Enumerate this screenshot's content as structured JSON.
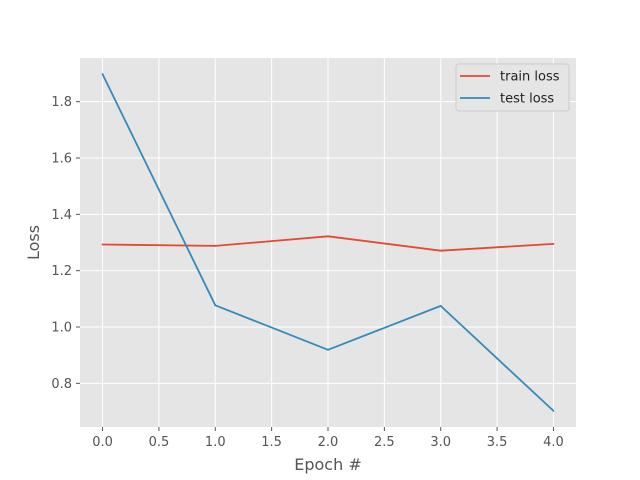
{
  "chart_data": {
    "type": "line",
    "title": "",
    "xlabel": "Epoch #",
    "ylabel": "Loss",
    "x": [
      0,
      1,
      2,
      3,
      4
    ],
    "xlim": [
      -0.2,
      4.2
    ],
    "ylim": [
      0.645,
      1.955
    ],
    "xticks": [
      0.0,
      0.5,
      1.0,
      1.5,
      2.0,
      2.5,
      3.0,
      3.5,
      4.0
    ],
    "xtick_labels": [
      "0.0",
      "0.5",
      "1.0",
      "1.5",
      "2.0",
      "2.5",
      "3.0",
      "3.5",
      "4.0"
    ],
    "yticks": [
      0.8,
      1.0,
      1.2,
      1.4,
      1.6,
      1.8
    ],
    "ytick_labels": [
      "0.8",
      "1.0",
      "1.2",
      "1.4",
      "1.6",
      "1.8"
    ],
    "grid": true,
    "legend_position": "top-right",
    "style": "ggplot",
    "colors": {
      "plot_bg": "#e5e5e5",
      "grid": "#ffffff"
    },
    "series": [
      {
        "name": "train loss",
        "color": "#e24a33",
        "values": [
          1.293,
          1.288,
          1.322,
          1.271,
          1.295
        ]
      },
      {
        "name": "test loss",
        "color": "#348abd",
        "values": [
          1.898,
          1.077,
          0.919,
          1.075,
          0.702
        ]
      }
    ]
  }
}
